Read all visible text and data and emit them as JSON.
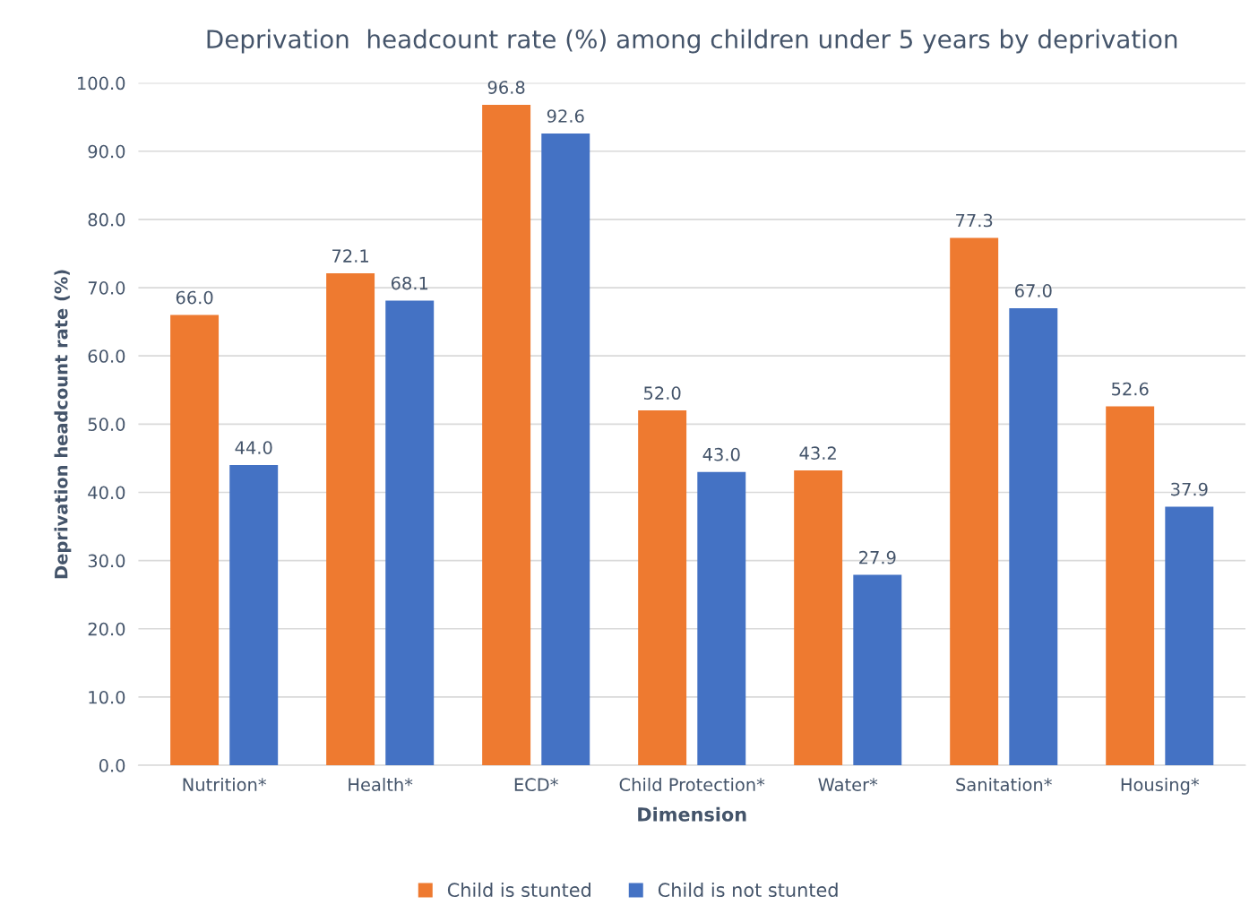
{
  "chart_data": {
    "type": "bar",
    "title": "Deprivation  headcount rate (%) among children under 5 years by deprivation",
    "xlabel": "Dimension",
    "ylabel": "Deprivation headcount rate (%)",
    "categories": [
      "Nutrition*",
      "Health*",
      "ECD*",
      "Child Protection*",
      "Water*",
      "Sanitation*",
      "Housing*"
    ],
    "series": [
      {
        "name": "Child is stunted",
        "color": "#ee7a30",
        "values": [
          66.0,
          72.1,
          96.8,
          52.0,
          43.2,
          77.3,
          52.6
        ],
        "value_labels": [
          "66.0",
          "72.1",
          "96.8",
          "52.0",
          "43.2",
          "77.3",
          "52.6"
        ]
      },
      {
        "name": "Child is not stunted",
        "color": "#4472c4",
        "values": [
          44.0,
          68.1,
          92.6,
          43.0,
          27.9,
          67.0,
          37.9
        ],
        "value_labels": [
          "44.0",
          "68.1",
          "92.6",
          "43.0",
          "27.9",
          "67.0",
          "37.9"
        ]
      }
    ],
    "ylim": [
      0,
      100
    ],
    "yticks": [
      {
        "value": 0,
        "label": "0.0"
      },
      {
        "value": 10,
        "label": "10.0"
      },
      {
        "value": 20,
        "label": "20.0"
      },
      {
        "value": 30,
        "label": "30.0"
      },
      {
        "value": 40,
        "label": "40.0"
      },
      {
        "value": 50,
        "label": "50.0"
      },
      {
        "value": 60,
        "label": "60.0"
      },
      {
        "value": 70,
        "label": "70.0"
      },
      {
        "value": 80,
        "label": "80.0"
      },
      {
        "value": 90,
        "label": "90.0"
      },
      {
        "value": 100,
        "label": "100.0"
      }
    ],
    "grid": "y",
    "legend": "bottom"
  }
}
